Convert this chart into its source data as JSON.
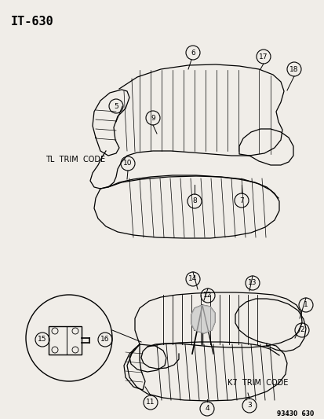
{
  "title": "IT–630",
  "part_number": "93430  630",
  "bg_color": "#f0ede8",
  "tl_trim_label": "TL  TRIM  CODE",
  "k7_trim_label": "K7  TRIM  CODE",
  "fig_w": 4.14,
  "fig_h": 5.33,
  "dpi": 100
}
